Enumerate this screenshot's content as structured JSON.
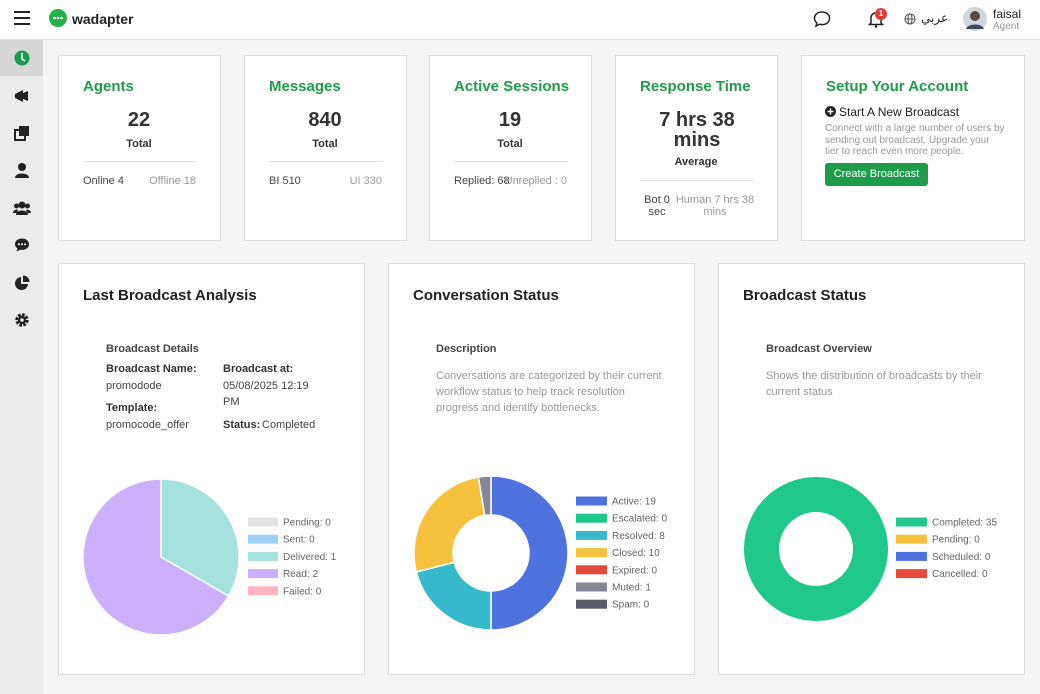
{
  "header": {
    "brand": "wadapter",
    "notification_count": "1",
    "language": "عربي",
    "user_name": "faisal",
    "user_role": "Agent"
  },
  "stats": [
    {
      "title": "Agents",
      "value": "22",
      "caption": "Total",
      "left": "Online 4",
      "right": "Offline 18"
    },
    {
      "title": "Messages",
      "value": "840",
      "caption": "Total",
      "left": "BI 510",
      "right": "UI 330"
    },
    {
      "title": "Active Sessions",
      "value": "19",
      "caption": "Total",
      "left": "Replied: 68",
      "right": "Unreplied : 0"
    },
    {
      "title": "Response Time",
      "value": "7 hrs 38 mins",
      "caption": "Average",
      "left": "Bot 0 sec",
      "right": "Human 7 hrs 38 mins"
    }
  ],
  "setup": {
    "title": "Setup Your Account",
    "subtitle": "Start A New Broadcast",
    "text": "Connect with a large number of users by sending out broadcast. Upgrade your tier to reach even more people.",
    "button": "Create Broadcast"
  },
  "panels": [
    {
      "title": "Last Broadcast Analysis",
      "details": {
        "heading": "Broadcast Details",
        "name_label": "Broadcast Name:",
        "name": "promodode",
        "at_label": "Broadcast at:",
        "at": "05/08/2025 12:19 PM",
        "template_label": "Template:",
        "template": "promocode_offer",
        "status_label": "Status:",
        "status": "Completed"
      },
      "chart": {
        "type": "pie",
        "labels": [
          "Pending: 0",
          "Sent: 0",
          "Delivered: 1",
          "Read: 2",
          "Failed: 0"
        ],
        "values": [
          0,
          0,
          1,
          2,
          0
        ],
        "colors": [
          "#e2e2e2",
          "#9fd0f5",
          "#a5e1dd",
          "#cdb0fb",
          "#ffb4c3"
        ]
      }
    },
    {
      "title": "Conversation Status",
      "heading": "Description",
      "text": "Conversations are categorized by their current workflow status to help track resolution progress and identify bottlenecks.",
      "chart": {
        "type": "donut",
        "labels": [
          "Active: 19",
          "Escalated: 0",
          "Resolved: 8",
          "Closed: 10",
          "Expired: 0",
          "Muted: 1",
          "Spam: 0"
        ],
        "values": [
          19,
          0,
          8,
          10,
          0,
          1,
          0
        ],
        "colors": [
          "#4e73df",
          "#1cc88a",
          "#36b9cc",
          "#f6c23e",
          "#e74a3b",
          "#858796",
          "#5a5c69"
        ]
      }
    },
    {
      "title": "Broadcast Status",
      "heading": "Broadcast Overview",
      "text": "Shows the distribution of broadcasts by their current status",
      "chart": {
        "type": "donut",
        "labels": [
          "Completed: 35",
          "Pending: 0",
          "Scheduled: 0",
          "Cancelled: 0"
        ],
        "values": [
          35,
          0,
          0,
          0
        ],
        "colors": [
          "#20c98b",
          "#f6c23e",
          "#4e73df",
          "#e74a3b"
        ]
      }
    }
  ]
}
